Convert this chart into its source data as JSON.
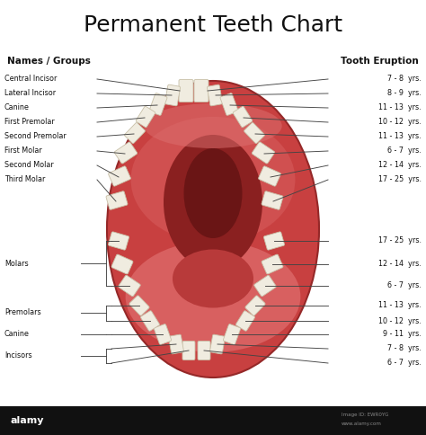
{
  "title": "Permanent Teeth Chart",
  "subtitle_left": "Names / Groups",
  "subtitle_right": "Tooth Eruption",
  "bg_color": "#ffffff",
  "title_fontsize": 18,
  "subtitle_fontsize": 7.5,
  "upper_labels_left": [
    "Central Incisor",
    "Lateral Incisor",
    "Canine",
    "First Premolar",
    "Second Premolar",
    "First Molar",
    "Second Molar",
    "Third Molar"
  ],
  "upper_labels_right": [
    "7 - 8  yrs.",
    "8 - 9  yrs.",
    "11 - 13  yrs.",
    "10 - 12  yrs.",
    "11 - 13  yrs.",
    "6 - 7  yrs.",
    "12 - 14  yrs.",
    "17 - 25  yrs."
  ],
  "lower_labels_left": [
    "Molars",
    "Premolars",
    "Canine",
    "Incisors"
  ],
  "lower_labels_right": [
    "17 - 25  yrs.",
    "12 - 14  yrs.",
    "6 - 7  yrs.",
    "11 - 13  yrs.",
    "10 - 12  yrs.",
    "9 - 11  yrs.",
    "7 - 8  yrs.",
    "6 - 7  yrs."
  ],
  "mouth_color": "#c84040",
  "mouth_rim_color": "#b03535",
  "inner_color": "#b03535",
  "throat_color": "#8a2020",
  "dark_throat_color": "#6a1515",
  "palate_color": "#d05050",
  "lower_palate_color": "#d86060",
  "gum_highlight": "#dd7070",
  "tooth_color": "#f0ece0",
  "tooth_edge": "#c8c0a8",
  "label_color": "#111111",
  "line_color": "#444444"
}
